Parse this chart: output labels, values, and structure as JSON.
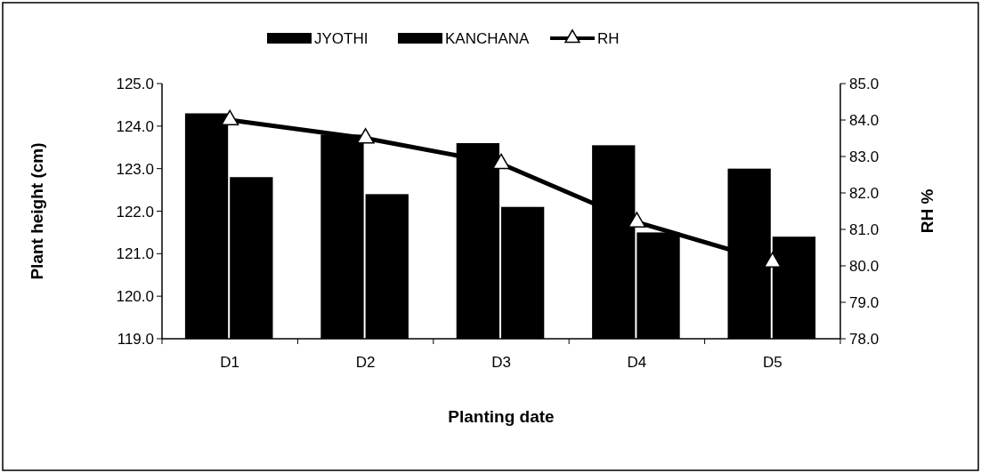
{
  "chart_data": {
    "type": "bar",
    "xlabel": "Planting date",
    "ylabel": "Plant height (cm)",
    "y2label": "RH %",
    "categories": [
      "D1",
      "D2",
      "D3",
      "D4",
      "D5"
    ],
    "series": [
      {
        "name": "JYOTHI",
        "color": "#000000",
        "values": [
          124.3,
          123.8,
          123.6,
          123.55,
          123.0
        ]
      },
      {
        "name": "KANCHANA",
        "color": "#000000",
        "values": [
          122.8,
          122.4,
          122.1,
          121.5,
          121.4
        ]
      },
      {
        "name": "RH",
        "type": "line",
        "axis": "y2",
        "color": "#000000",
        "marker": "triangle",
        "values": [
          84.0,
          83.5,
          82.8,
          81.2,
          80.1
        ]
      }
    ],
    "ylim": [
      119,
      125
    ],
    "yticks": [
      {
        "value": 119,
        "label": "119.0"
      },
      {
        "value": 120,
        "label": "120.0"
      },
      {
        "value": 121,
        "label": "121.0"
      },
      {
        "value": 122,
        "label": "122.0"
      },
      {
        "value": 123,
        "label": "123.0"
      },
      {
        "value": 124,
        "label": "124.0"
      },
      {
        "value": 125,
        "label": "125.0"
      }
    ],
    "y2lim": [
      78,
      85
    ],
    "y2ticks": [
      {
        "value": 78,
        "label": "78.0"
      },
      {
        "value": 79,
        "label": "79.0"
      },
      {
        "value": 80,
        "label": "80.0"
      },
      {
        "value": 81,
        "label": "81.0"
      },
      {
        "value": 82,
        "label": "82.0"
      },
      {
        "value": 83,
        "label": "83.0"
      },
      {
        "value": 84,
        "label": "84.0"
      },
      {
        "value": 85,
        "label": "85.0"
      }
    ],
    "legend": "top",
    "grid": false
  }
}
